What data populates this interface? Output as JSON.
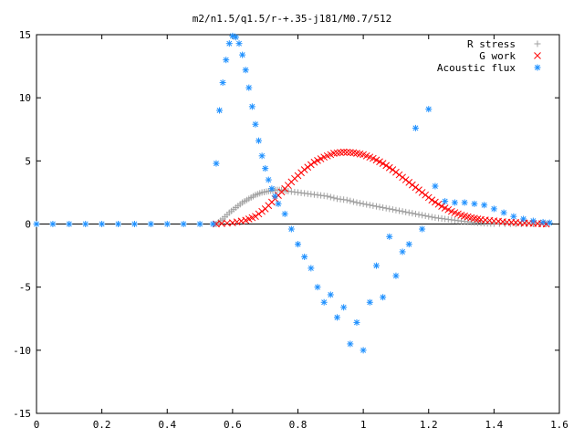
{
  "chart_data": {
    "type": "scatter",
    "title": "m2/n1.5/q1.5/r-+.35-j181/M0.7/512",
    "xlabel": "",
    "ylabel": "",
    "xlim": [
      0,
      1.6
    ],
    "ylim": [
      -15,
      15
    ],
    "x_ticks": [
      "0",
      "0.2",
      "0.4",
      "0.6",
      "0.8",
      "1",
      "1.2",
      "1.4",
      "1.6"
    ],
    "y_ticks": [
      "15",
      "10",
      "5",
      "0",
      "-5",
      "-10",
      "-15"
    ],
    "legend_position": "top-right",
    "series": [
      {
        "name": "R stress",
        "marker": "plus",
        "color": "#a0a0a0",
        "points": [
          [
            0.55,
            0.0
          ],
          [
            0.57,
            0.4
          ],
          [
            0.59,
            0.9
          ],
          [
            0.61,
            1.3
          ],
          [
            0.63,
            1.7
          ],
          [
            0.65,
            2.0
          ],
          [
            0.67,
            2.3
          ],
          [
            0.69,
            2.5
          ],
          [
            0.71,
            2.6
          ],
          [
            0.73,
            2.7
          ],
          [
            0.75,
            2.7
          ],
          [
            0.77,
            2.6
          ],
          [
            0.8,
            2.5
          ],
          [
            0.83,
            2.4
          ],
          [
            0.86,
            2.3
          ],
          [
            0.89,
            2.2
          ],
          [
            0.92,
            2.0
          ],
          [
            0.95,
            1.9
          ],
          [
            0.98,
            1.7
          ],
          [
            1.01,
            1.55
          ],
          [
            1.04,
            1.4
          ],
          [
            1.07,
            1.25
          ],
          [
            1.1,
            1.1
          ],
          [
            1.13,
            0.95
          ],
          [
            1.16,
            0.8
          ],
          [
            1.19,
            0.65
          ],
          [
            1.22,
            0.5
          ],
          [
            1.25,
            0.4
          ],
          [
            1.28,
            0.3
          ],
          [
            1.31,
            0.2
          ],
          [
            1.34,
            0.12
          ],
          [
            1.37,
            0.06
          ],
          [
            1.4,
            0.03
          ],
          [
            1.45,
            0.01
          ],
          [
            1.5,
            0.0
          ],
          [
            1.56,
            0.0
          ]
        ]
      },
      {
        "name": "G work",
        "marker": "cross",
        "color": "#ff0000",
        "points": [
          [
            0.55,
            0.0
          ],
          [
            0.6,
            0.1
          ],
          [
            0.64,
            0.3
          ],
          [
            0.67,
            0.6
          ],
          [
            0.7,
            1.2
          ],
          [
            0.73,
            2.0
          ],
          [
            0.76,
            2.8
          ],
          [
            0.79,
            3.6
          ],
          [
            0.82,
            4.3
          ],
          [
            0.85,
            4.9
          ],
          [
            0.88,
            5.3
          ],
          [
            0.91,
            5.6
          ],
          [
            0.94,
            5.7
          ],
          [
            0.97,
            5.65
          ],
          [
            1.0,
            5.5
          ],
          [
            1.03,
            5.2
          ],
          [
            1.06,
            4.8
          ],
          [
            1.09,
            4.3
          ],
          [
            1.12,
            3.7
          ],
          [
            1.15,
            3.1
          ],
          [
            1.18,
            2.5
          ],
          [
            1.21,
            1.9
          ],
          [
            1.24,
            1.4
          ],
          [
            1.27,
            1.0
          ],
          [
            1.3,
            0.7
          ],
          [
            1.33,
            0.5
          ],
          [
            1.36,
            0.35
          ],
          [
            1.4,
            0.25
          ],
          [
            1.44,
            0.15
          ],
          [
            1.48,
            0.1
          ],
          [
            1.52,
            0.05
          ],
          [
            1.56,
            0.0
          ]
        ]
      },
      {
        "name": "Acoustic flux",
        "marker": "star",
        "color": "#1e90ff",
        "points": [
          [
            0.0,
            0.0
          ],
          [
            0.05,
            0.0
          ],
          [
            0.1,
            0.0
          ],
          [
            0.15,
            0.0
          ],
          [
            0.2,
            0.0
          ],
          [
            0.25,
            0.0
          ],
          [
            0.3,
            0.0
          ],
          [
            0.35,
            0.0
          ],
          [
            0.4,
            0.0
          ],
          [
            0.45,
            0.0
          ],
          [
            0.5,
            0.0
          ],
          [
            0.54,
            0.0
          ],
          [
            0.55,
            4.8
          ],
          [
            0.56,
            9.0
          ],
          [
            0.57,
            11.2
          ],
          [
            0.58,
            13.0
          ],
          [
            0.59,
            14.3
          ],
          [
            0.6,
            14.9
          ],
          [
            0.61,
            14.8
          ],
          [
            0.62,
            14.3
          ],
          [
            0.63,
            13.4
          ],
          [
            0.64,
            12.2
          ],
          [
            0.65,
            10.8
          ],
          [
            0.66,
            9.3
          ],
          [
            0.67,
            7.9
          ],
          [
            0.68,
            6.6
          ],
          [
            0.69,
            5.4
          ],
          [
            0.7,
            4.4
          ],
          [
            0.71,
            3.5
          ],
          [
            0.72,
            2.8
          ],
          [
            0.73,
            2.2
          ],
          [
            0.74,
            1.6
          ],
          [
            0.76,
            0.8
          ],
          [
            0.78,
            -0.4
          ],
          [
            0.8,
            -1.6
          ],
          [
            0.82,
            -2.6
          ],
          [
            0.84,
            -3.5
          ],
          [
            0.86,
            -5.0
          ],
          [
            0.88,
            -6.2
          ],
          [
            0.9,
            -5.6
          ],
          [
            0.92,
            -7.4
          ],
          [
            0.94,
            -6.6
          ],
          [
            0.96,
            -9.5
          ],
          [
            0.98,
            -7.8
          ],
          [
            1.0,
            -10.0
          ],
          [
            1.02,
            -6.2
          ],
          [
            1.04,
            -3.3
          ],
          [
            1.06,
            -5.8
          ],
          [
            1.08,
            -1.0
          ],
          [
            1.1,
            -4.1
          ],
          [
            1.12,
            -2.2
          ],
          [
            1.14,
            -1.6
          ],
          [
            1.16,
            7.6
          ],
          [
            1.18,
            -0.4
          ],
          [
            1.2,
            9.1
          ],
          [
            1.22,
            3.0
          ],
          [
            1.25,
            1.8
          ],
          [
            1.28,
            1.7
          ],
          [
            1.31,
            1.7
          ],
          [
            1.34,
            1.6
          ],
          [
            1.37,
            1.5
          ],
          [
            1.4,
            1.2
          ],
          [
            1.43,
            0.9
          ],
          [
            1.46,
            0.6
          ],
          [
            1.49,
            0.4
          ],
          [
            1.52,
            0.25
          ],
          [
            1.55,
            0.15
          ],
          [
            1.57,
            0.1
          ]
        ]
      }
    ]
  },
  "colors": {
    "r_stress": "#a0a0a0",
    "g_work": "#ff0000",
    "acoustic_flux": "#1e90ff"
  }
}
